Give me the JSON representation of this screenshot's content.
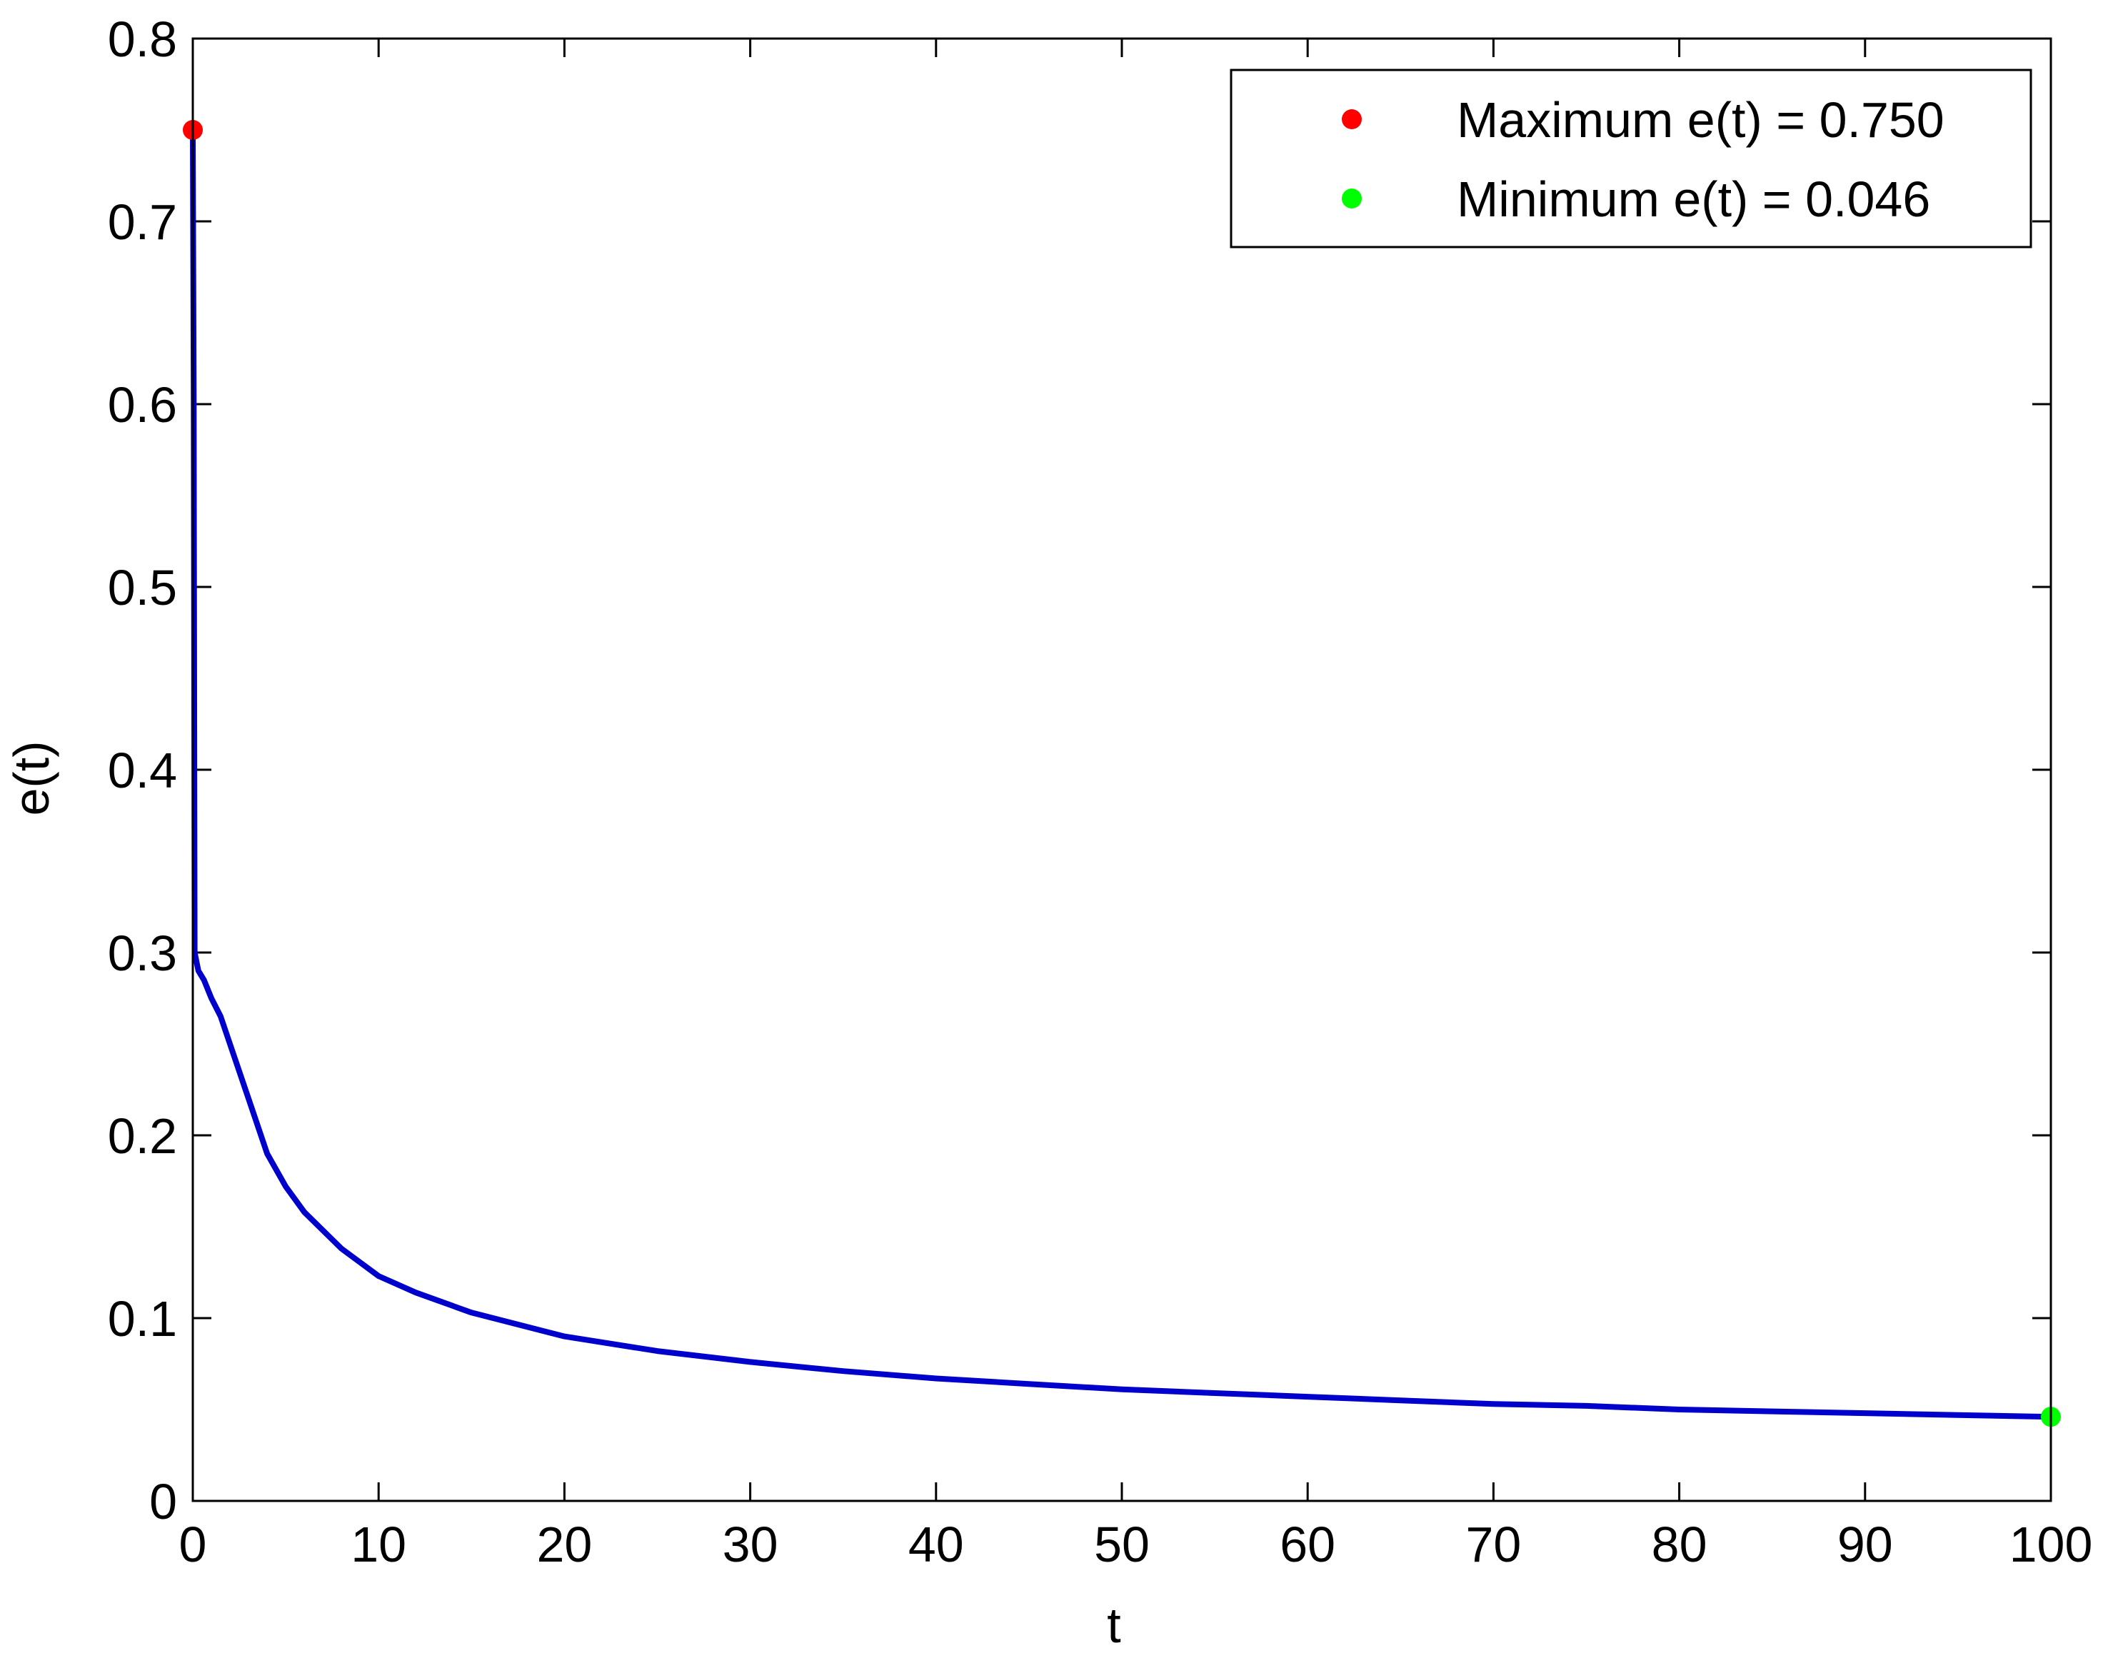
{
  "chart_data": {
    "type": "line",
    "title": "",
    "xlabel": "t",
    "ylabel": "e(t)",
    "xlim": [
      0,
      100
    ],
    "ylim": [
      0,
      0.8
    ],
    "xticks": [
      "0",
      "10",
      "20",
      "30",
      "40",
      "50",
      "60",
      "70",
      "80",
      "90",
      "100"
    ],
    "yticks": [
      "0",
      "0.1",
      "0.2",
      "0.3",
      "0.4",
      "0.5",
      "0.6",
      "0.7",
      "0.8"
    ],
    "grid": false,
    "legend_position": "top-right",
    "series": [
      {
        "color": "#0000cc",
        "x": [
          0,
          0.05,
          0.1,
          0.3,
          0.6,
          1,
          1.5,
          2,
          3,
          4,
          5,
          6,
          8,
          10,
          12,
          15,
          20,
          25,
          30,
          35,
          40,
          45,
          50,
          55,
          60,
          65,
          70,
          75,
          80,
          85,
          90,
          95,
          100
        ],
        "y": [
          0.75,
          0.6,
          0.3,
          0.29,
          0.285,
          0.275,
          0.265,
          0.25,
          0.22,
          0.19,
          0.172,
          0.158,
          0.138,
          0.123,
          0.114,
          0.103,
          0.09,
          0.082,
          0.076,
          0.071,
          0.067,
          0.064,
          0.061,
          0.059,
          0.057,
          0.055,
          0.053,
          0.052,
          0.05,
          0.049,
          0.048,
          0.047,
          0.046
        ]
      }
    ],
    "markers": [
      {
        "label": "Maximum e(t) = 0.750",
        "x": 0,
        "y": 0.75,
        "color": "#ff0000"
      },
      {
        "label": "Minimum e(t) = 0.046",
        "x": 100,
        "y": 0.046,
        "color": "#00ff00"
      }
    ]
  }
}
